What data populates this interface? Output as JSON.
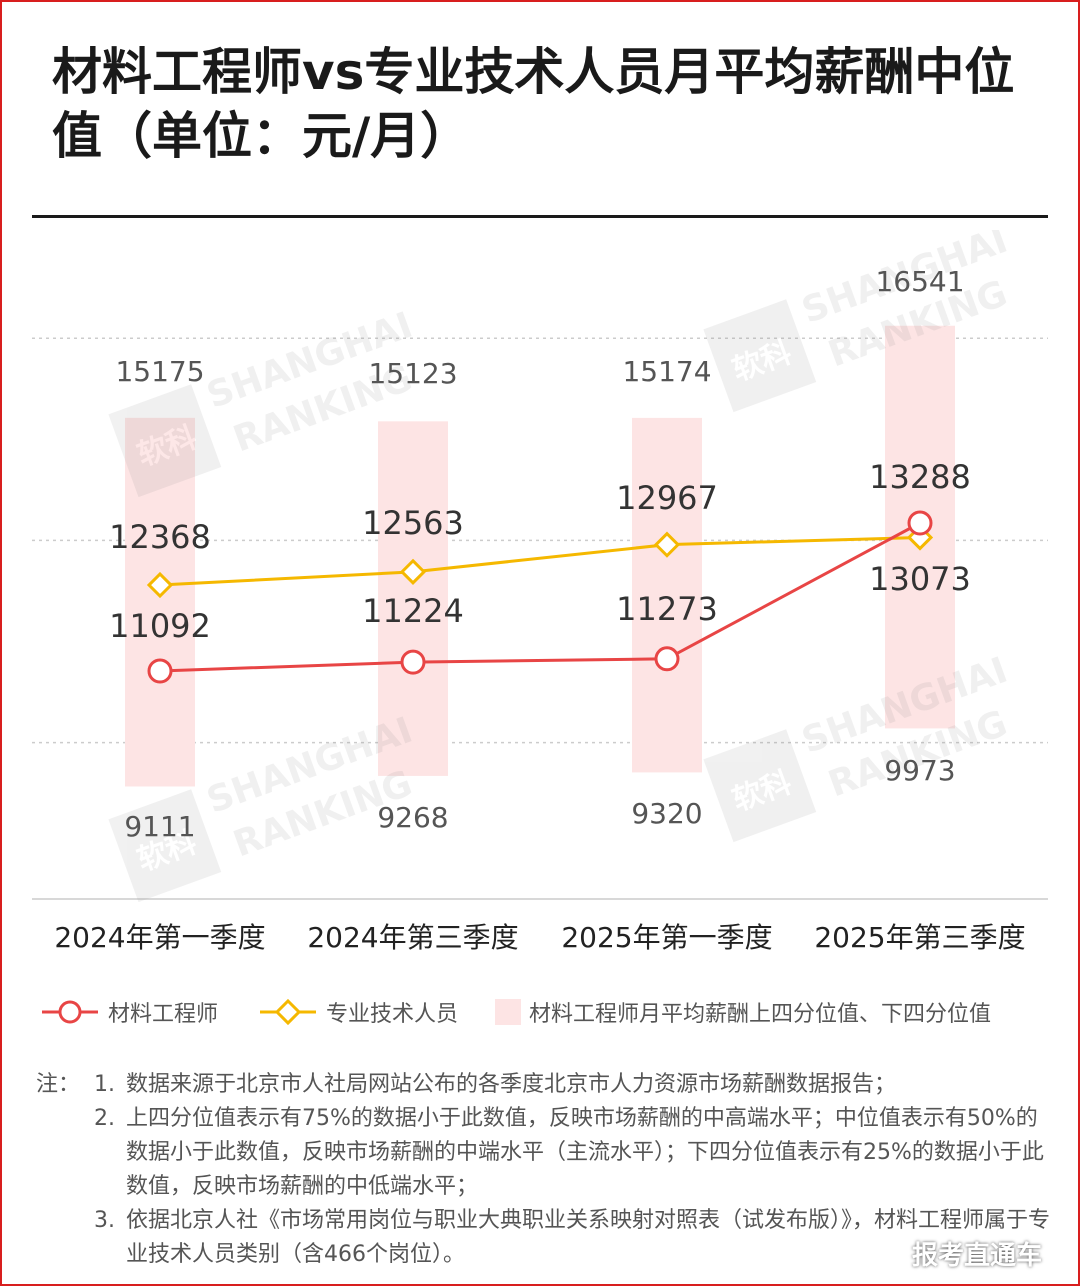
{
  "title": "材料工程师vs专业技术人员月平均薪酬中位值（单位：元/月）",
  "colors": {
    "frame": "#d81e1e",
    "engineer": "#e84545",
    "professional": "#f5b800",
    "range_band": "#fde4e4",
    "grid": "#cccccc"
  },
  "chart_data": {
    "type": "line",
    "categories": [
      "2024年第一季度",
      "2024年第三季度",
      "2025年第一季度",
      "2025年第三季度"
    ],
    "series": [
      {
        "name": "材料工程师",
        "values": [
          11092,
          11224,
          11273,
          13288
        ],
        "marker": "circle",
        "color": "#e84545"
      },
      {
        "name": "专业技术人员",
        "values": [
          12368,
          12563,
          12967,
          13073
        ],
        "marker": "diamond",
        "color": "#f5b800"
      }
    ],
    "range": {
      "name": "材料工程师月平均薪酬上四分位值、下四分位值",
      "upper": [
        15175,
        15123,
        15174,
        16541
      ],
      "lower": [
        9111,
        9268,
        9320,
        9973
      ]
    },
    "labels": {
      "engineer": [
        "11092",
        "11224",
        "11273",
        "13288"
      ],
      "professional": [
        "12368",
        "12563",
        "12967",
        "13073"
      ],
      "upper": [
        "15175",
        "15123",
        "15174",
        "16541"
      ],
      "lower": [
        "9111",
        "9268",
        "9320",
        "9973"
      ]
    },
    "grid": true,
    "legend_position": "bottom"
  },
  "legend": {
    "engineer": "材料工程师",
    "professional": "专业技术人员",
    "range": "材料工程师月平均薪酬上四分位值、下四分位值"
  },
  "notes": {
    "prefix": "注：",
    "items": [
      {
        "num": "1.",
        "text": "数据来源于北京市人社局网站公布的各季度北京市人力资源市场薪酬数据报告；"
      },
      {
        "num": "2.",
        "text": "上四分位值表示有75%的数据小于此数值，反映市场薪酬的中高端水平；中位值表示有50%的数据小于此数值，反映市场薪酬的中端水平（主流水平）；下四分位值表示有25%的数据小于此数值，反映市场薪酬的中低端水平；"
      },
      {
        "num": "3.",
        "text": "依据北京人社《市场常用岗位与职业大典职业关系映射对照表（试发布版）》，材料工程师属于专业技术人员类别（含466个岗位）。"
      }
    ]
  },
  "watermarks": {
    "logo_text": "软科",
    "brand_line1": "SHANGHAI",
    "brand_line2": "RANKING",
    "source_tag": "报考直通车"
  }
}
